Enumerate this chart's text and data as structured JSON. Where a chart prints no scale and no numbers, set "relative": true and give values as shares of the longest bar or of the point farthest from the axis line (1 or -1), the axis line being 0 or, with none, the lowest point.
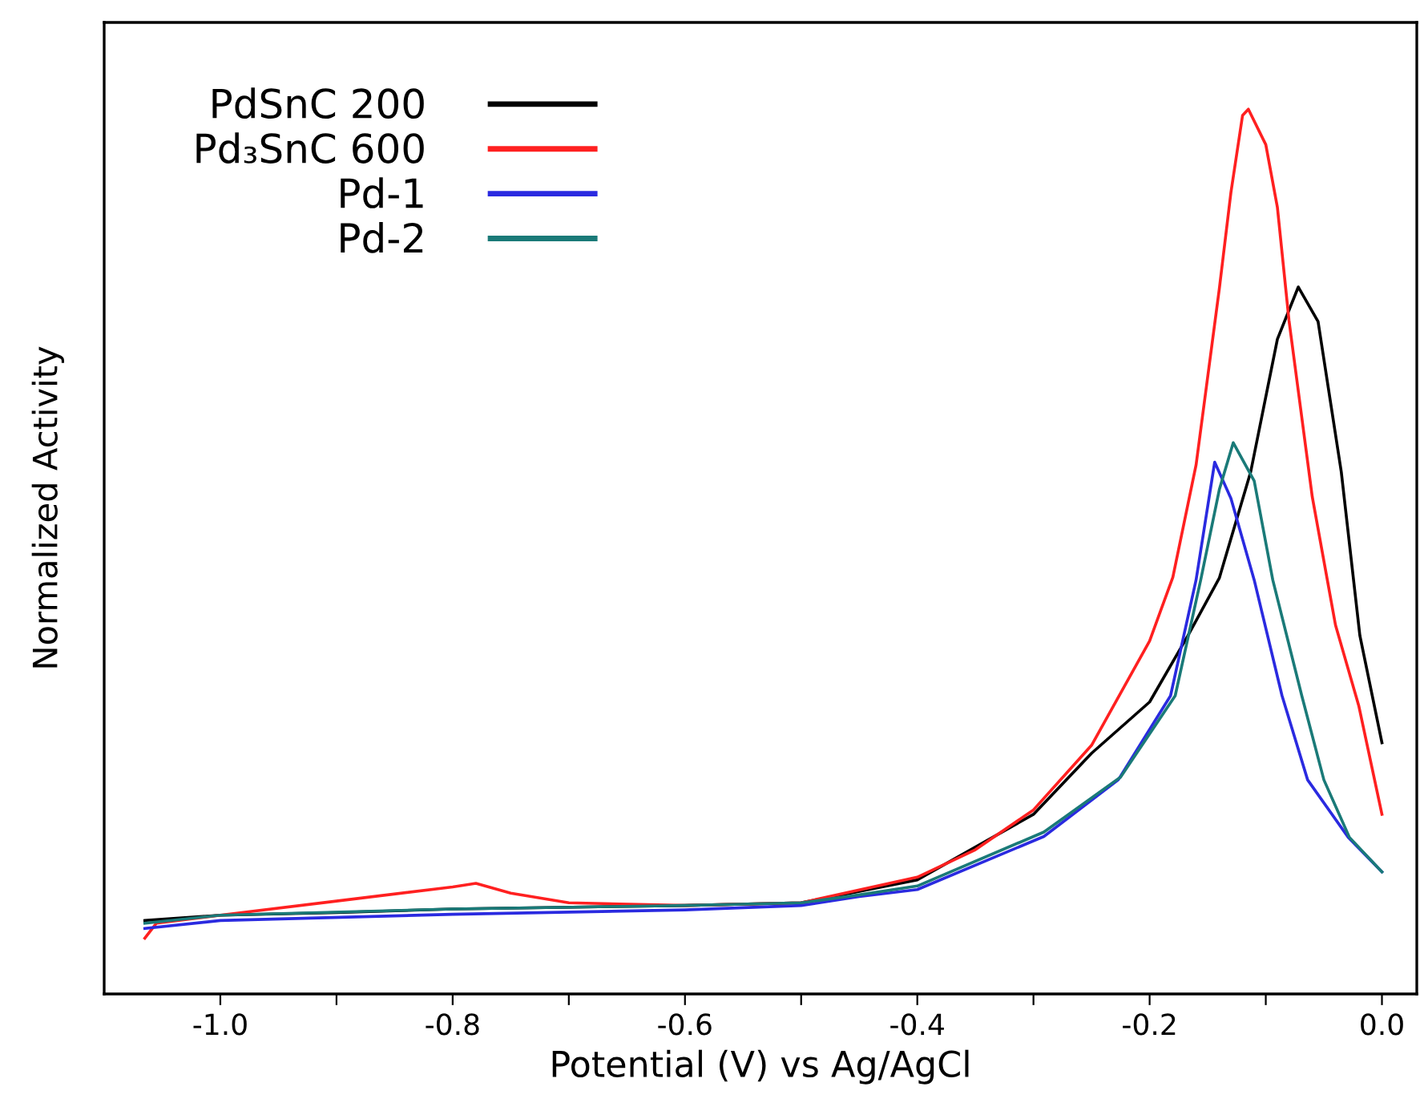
{
  "chart_data": {
    "type": "line",
    "relative": true,
    "xlabel": "Potential (V) vs Ag/AgCl",
    "ylabel": "Normalized Activity",
    "xlim": [
      -1.1,
      0.03
    ],
    "xticks": [
      {
        "value": -1.0,
        "label": "-1.0"
      },
      {
        "value": -0.9,
        "label": null
      },
      -0.8,
      {
        "value": -0.7,
        "label": null
      },
      -0.6,
      {
        "value": -0.5,
        "label": null
      },
      -0.4,
      {
        "value": -0.3,
        "label": null
      },
      -0.2,
      {
        "value": -0.1,
        "label": null
      },
      {
        "value": 0.0,
        "label": "0.0"
      }
    ],
    "tick_labels": "x",
    "legend": "top left",
    "grid": false,
    "line_style": "solid",
    "marker": "none",
    "series": [
      {
        "name": "PdSnC 200",
        "color": "#000000",
        "x": [
          -1.065,
          -1.0,
          -0.9,
          -0.8,
          -0.6,
          -0.5,
          -0.4,
          -0.3,
          -0.25,
          -0.2,
          -0.167,
          -0.14,
          -0.113,
          -0.09,
          -0.072,
          -0.055,
          -0.035,
          -0.019,
          0.0
        ],
        "values": [
          0.083,
          0.089,
          0.092,
          0.096,
          0.1,
          0.103,
          0.129,
          0.203,
          0.272,
          0.33,
          0.405,
          0.47,
          0.59,
          0.74,
          0.799,
          0.76,
          0.59,
          0.405,
          0.284
        ]
      },
      {
        "name": "Pd₃SnC 600",
        "color": "#ff2020",
        "x": [
          -1.065,
          -1.055,
          -1.0,
          -0.9,
          -0.8,
          -0.78,
          -0.75,
          -0.7,
          -0.6,
          -0.5,
          -0.4,
          -0.35,
          -0.3,
          -0.25,
          -0.2,
          -0.18,
          -0.16,
          -0.14,
          -0.13,
          -0.12,
          -0.115,
          -0.1,
          -0.09,
          -0.08,
          -0.06,
          -0.04,
          -0.02,
          0.0
        ],
        "values": [
          0.063,
          0.08,
          0.089,
          0.105,
          0.121,
          0.125,
          0.114,
          0.103,
          0.1,
          0.103,
          0.132,
          0.163,
          0.208,
          0.281,
          0.399,
          0.471,
          0.598,
          0.797,
          0.906,
          0.993,
          1.0,
          0.96,
          0.889,
          0.761,
          0.562,
          0.417,
          0.326,
          0.203
        ]
      },
      {
        "name": "Pd-1",
        "color": "#2a2ae0",
        "x": [
          -1.065,
          -1.0,
          -0.8,
          -0.6,
          -0.5,
          -0.45,
          -0.4,
          -0.291,
          -0.227,
          -0.182,
          -0.16,
          -0.144,
          -0.13,
          -0.11,
          -0.086,
          -0.064,
          -0.029,
          0.0
        ],
        "values": [
          0.074,
          0.083,
          0.09,
          0.095,
          0.1,
          0.11,
          0.118,
          0.178,
          0.242,
          0.337,
          0.468,
          0.601,
          0.56,
          0.468,
          0.337,
          0.242,
          0.177,
          0.138
        ]
      },
      {
        "name": "Pd-2",
        "color": "#1a7a78",
        "x": [
          -1.065,
          -1.0,
          -0.8,
          -0.6,
          -0.5,
          -0.45,
          -0.4,
          -0.291,
          -0.225,
          -0.178,
          -0.156,
          -0.14,
          -0.128,
          -0.11,
          -0.094,
          -0.069,
          -0.05,
          -0.028,
          0.0
        ],
        "values": [
          0.08,
          0.089,
          0.096,
          0.1,
          0.103,
          0.112,
          0.122,
          0.183,
          0.245,
          0.337,
          0.468,
          0.57,
          0.623,
          0.58,
          0.468,
          0.337,
          0.242,
          0.177,
          0.138
        ]
      }
    ]
  }
}
